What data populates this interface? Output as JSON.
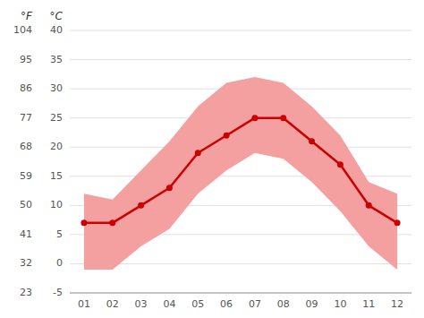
{
  "chart_data": {
    "type": "line",
    "categories": [
      "01",
      "02",
      "03",
      "04",
      "05",
      "06",
      "07",
      "08",
      "09",
      "10",
      "11",
      "12"
    ],
    "series": [
      {
        "type": "band",
        "color": "#f5a0a0",
        "low": [
          -1,
          -1,
          3,
          6,
          12,
          16,
          19,
          18,
          14,
          9,
          3,
          -1
        ],
        "high": [
          12,
          11,
          16,
          21,
          27,
          31,
          32,
          31,
          27,
          22,
          14,
          12
        ]
      },
      {
        "type": "line",
        "color": "#cc0000",
        "marker": "circle",
        "values": [
          7,
          7,
          10,
          13,
          19,
          22,
          25,
          25,
          21,
          17,
          10,
          7
        ]
      }
    ],
    "ylabel": "°C",
    "y2label": "°F",
    "ylim": [
      -5,
      40
    ],
    "yticks": [
      -5,
      0,
      5,
      10,
      15,
      20,
      25,
      30,
      35,
      40
    ],
    "y2lim": [
      23,
      104
    ],
    "y2ticks": [
      23,
      32,
      41,
      50,
      59,
      68,
      77,
      86,
      95,
      104
    ],
    "grid": true
  }
}
